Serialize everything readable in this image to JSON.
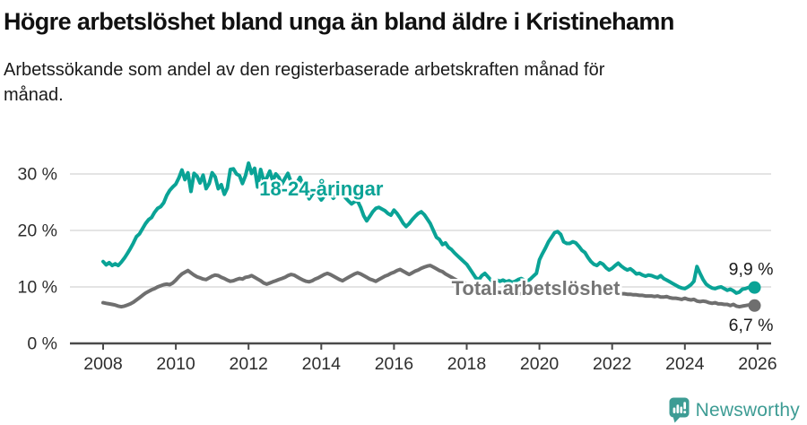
{
  "header": {
    "title": "Högre arbetslöshet bland unga än bland äldre i Kristinehamn",
    "subtitle": "Arbetssökande som andel av den registerbaserade arbetskraften månad för månad."
  },
  "footer": {
    "brand": "Newsworthy",
    "brand_color": "#3d9c94",
    "logo_icon": "newsworthy-speech-bubble-bar-chart-icon"
  },
  "colors": {
    "youth_line": "#0aa396",
    "total_line": "#6f6f6f",
    "total_label": "#757575",
    "gridline": "#dcdcdc",
    "axis": "#4a4a4a",
    "axis_text": "#2e2e2e",
    "end_label_text": "#1a1a1a"
  },
  "chart_data": {
    "type": "line",
    "title": "Högre arbetslöshet bland unga än bland äldre i Kristinehamn",
    "subtitle": "Arbetssökande som andel av den registerbaserade arbetskraften månad för månad.",
    "grid": "horizontal",
    "legend_position": "inline-labels-on-lines",
    "x_axis": {
      "x0": 2008,
      "step_months": 1,
      "ticks": [
        2008,
        2010,
        2012,
        2014,
        2016,
        2018,
        2020,
        2022,
        2024,
        2026
      ],
      "tick_labels": [
        "2008",
        "2010",
        "2012",
        "2014",
        "2016",
        "2018",
        "2020",
        "2022",
        "2024",
        "2026"
      ],
      "range": [
        2007.1,
        2026.4
      ]
    },
    "y_axis": {
      "ticks": [
        0,
        10,
        20,
        30
      ],
      "tick_labels": [
        "0 %",
        "10 %",
        "20 %",
        "30 %"
      ],
      "range": [
        0,
        33
      ],
      "unit": "%"
    },
    "series": [
      {
        "name": "Total arbetslöshet",
        "color": "#6f6f6f",
        "label_color": "#757575",
        "label_pos": {
          "x": 2019.9,
          "y": 9.7
        },
        "end_value": 6.7,
        "end_label": "6,7 %",
        "end_label_side": "below",
        "values": [
          7.2,
          7.1,
          7.0,
          6.9,
          6.8,
          6.6,
          6.5,
          6.6,
          6.8,
          7.0,
          7.3,
          7.7,
          8.1,
          8.5,
          8.9,
          9.2,
          9.5,
          9.7,
          10.0,
          10.2,
          10.4,
          10.5,
          10.4,
          10.7,
          11.2,
          11.8,
          12.3,
          12.6,
          12.9,
          12.5,
          12.1,
          11.8,
          11.6,
          11.4,
          11.3,
          11.6,
          11.9,
          12.1,
          12.0,
          11.7,
          11.5,
          11.2,
          11.0,
          11.1,
          11.3,
          11.5,
          11.4,
          11.7,
          11.8,
          12.0,
          11.7,
          11.4,
          11.1,
          10.7,
          10.5,
          10.7,
          10.9,
          11.1,
          11.3,
          11.5,
          11.7,
          12.0,
          12.2,
          12.1,
          11.8,
          11.5,
          11.2,
          11.0,
          10.9,
          11.1,
          11.4,
          11.6,
          11.9,
          12.2,
          12.4,
          12.2,
          11.9,
          11.6,
          11.3,
          11.1,
          11.4,
          11.7,
          12.0,
          12.3,
          12.5,
          12.3,
          12.0,
          11.7,
          11.4,
          11.2,
          11.0,
          11.3,
          11.6,
          11.9,
          12.1,
          12.4,
          12.6,
          12.9,
          13.1,
          12.8,
          12.5,
          12.2,
          12.5,
          12.8,
          13.0,
          13.3,
          13.5,
          13.7,
          13.8,
          13.5,
          13.2,
          12.9,
          12.7,
          12.3,
          12.0,
          11.7,
          11.4,
          11.1,
          10.9,
          10.7,
          10.5,
          10.3,
          10.1,
          9.9,
          9.8,
          9.6,
          9.5,
          9.4,
          9.3,
          9.2,
          9.1,
          9.0,
          9.0,
          8.9,
          8.8,
          8.8,
          8.7,
          8.7,
          8.8,
          8.8,
          8.9,
          8.9,
          9.0,
          9.1,
          9.3,
          9.6,
          9.9,
          10.2,
          10.4,
          10.5,
          10.4,
          10.3,
          10.1,
          10.0,
          9.9,
          9.8,
          9.7,
          9.6,
          9.5,
          9.4,
          9.3,
          9.2,
          9.1,
          9.0,
          9.0,
          8.9,
          8.9,
          8.8,
          9.0,
          8.9,
          8.9,
          8.8,
          8.8,
          8.7,
          8.7,
          8.6,
          8.6,
          8.5,
          8.5,
          8.4,
          8.4,
          8.4,
          8.3,
          8.4,
          8.2,
          8.2,
          8.3,
          8.1,
          8.0,
          8.0,
          7.9,
          7.8,
          8.0,
          7.8,
          7.7,
          7.8,
          7.5,
          7.4,
          7.5,
          7.4,
          7.2,
          7.1,
          7.2,
          7.0,
          7.0,
          6.9,
          6.9,
          6.7,
          6.9,
          6.6,
          6.5,
          6.6,
          6.7,
          6.8,
          6.7,
          6.7
        ]
      },
      {
        "name": "18-24-åringar",
        "color": "#0aa396",
        "label_color": "#0aa396",
        "label_pos": {
          "x": 2014.0,
          "y": 27.3
        },
        "end_value": 9.9,
        "end_label": "9,9 %",
        "end_label_side": "above",
        "values": [
          14.5,
          13.9,
          14.3,
          13.8,
          14.1,
          13.8,
          14.4,
          15.1,
          15.9,
          16.8,
          17.8,
          18.9,
          19.4,
          20.3,
          21.2,
          21.9,
          22.3,
          23.2,
          23.9,
          24.2,
          24.9,
          26.2,
          27.1,
          27.7,
          28.2,
          29.3,
          30.7,
          29.0,
          30.2,
          26.9,
          30.1,
          29.6,
          28.4,
          29.8,
          27.4,
          28.3,
          30.2,
          29.5,
          27.4,
          28.1,
          26.4,
          27.5,
          30.8,
          30.9,
          30.0,
          29.7,
          28.3,
          29.7,
          31.9,
          30.1,
          31.0,
          27.7,
          30.8,
          28.8,
          29.3,
          30.5,
          28.8,
          30.0,
          29.4,
          28.2,
          29.2,
          30.1,
          28.6,
          27.5,
          28.5,
          29.4,
          28.0,
          26.8,
          25.6,
          26.4,
          27.1,
          26.2,
          25.4,
          26.1,
          26.9,
          26.4,
          25.7,
          26.3,
          27.0,
          26.5,
          25.8,
          25.2,
          24.7,
          25.1,
          25.2,
          24.1,
          22.6,
          21.7,
          22.5,
          23.3,
          23.9,
          24.1,
          23.8,
          23.5,
          23.0,
          22.7,
          23.6,
          23.0,
          22.2,
          21.3,
          20.7,
          21.2,
          21.9,
          22.5,
          23.0,
          23.3,
          22.8,
          22.0,
          21.2,
          20.0,
          18.8,
          18.4,
          17.5,
          17.8,
          17.0,
          16.6,
          16.0,
          15.5,
          15.0,
          14.5,
          14.0,
          13.2,
          12.4,
          11.6,
          11.3,
          12.0,
          12.4,
          11.8,
          11.2,
          10.8,
          11.2,
          11.0,
          11.2,
          10.9,
          11.1,
          10.8,
          11.0,
          11.3,
          11.5,
          11.2,
          11.0,
          11.4,
          11.9,
          12.4,
          14.8,
          15.9,
          16.9,
          18.0,
          18.8,
          19.6,
          19.8,
          19.3,
          18.0,
          17.7,
          17.7,
          18.0,
          17.8,
          17.2,
          16.5,
          16.1,
          15.2,
          14.5,
          14.0,
          13.8,
          14.3,
          14.0,
          13.4,
          13.0,
          13.3,
          13.8,
          14.2,
          13.7,
          13.3,
          13.0,
          13.2,
          12.8,
          12.3,
          12.4,
          12.1,
          11.9,
          12.1,
          12.0,
          11.8,
          11.6,
          12.0,
          11.5,
          11.2,
          10.9,
          10.6,
          10.3,
          10.0,
          9.8,
          9.7,
          10.0,
          10.4,
          11.0,
          13.6,
          12.4,
          11.3,
          10.5,
          10.1,
          9.8,
          9.7,
          9.9,
          10.0,
          9.7,
          9.4,
          9.6,
          9.3,
          8.9,
          9.1,
          9.6,
          9.7,
          9.9,
          10.0,
          9.9
        ]
      }
    ]
  }
}
